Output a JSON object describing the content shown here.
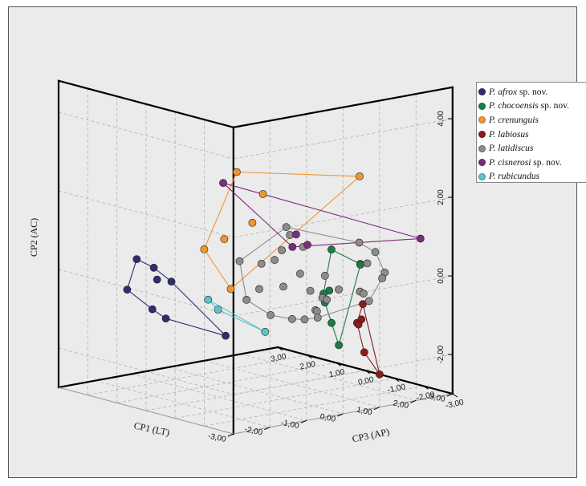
{
  "chart_data": {
    "type": "scatter",
    "projection": "3d",
    "hulls": true,
    "axes": {
      "x": {
        "label": "CP1 (LT)",
        "range": [
          -3,
          3
        ],
        "ticks": [
          "-3,00",
          "-2,00",
          "-1,00",
          "0,00",
          "1,00",
          "2,00",
          "3,00"
        ]
      },
      "z": {
        "label": "CP3 (AP)",
        "range": [
          -3,
          3
        ],
        "ticks": [
          "3,00",
          "2,00",
          "1,00",
          "0,00",
          "-1,00",
          "-2,00",
          "-3,00"
        ]
      },
      "y": {
        "label": "CP2 (AC)",
        "range": [
          -3,
          4.8
        ],
        "ticks": [
          "-2,00",
          "0,00",
          "2,00",
          "4,00"
        ]
      }
    },
    "series": [
      {
        "name": "P. afrox",
        "species": "P. afrox",
        "suffix": " sp. nov.",
        "color": "#2e2e6e",
        "points": [
          [
            -1.1,
            0.0,
            2.7
          ],
          [
            -1.35,
            0.0,
            1.8
          ],
          [
            -1.3,
            -0.3,
            1.75
          ],
          [
            -2.4,
            -0.3,
            1.4
          ],
          [
            -0.95,
            -0.4,
            1.7
          ],
          [
            -1.75,
            -0.9,
            1.35
          ],
          [
            -1.5,
            -1.15,
            1.2
          ],
          [
            -0.5,
            -1.6,
            0.4
          ]
        ]
      },
      {
        "name": "P. chocoensis",
        "species": "P. chocoensis",
        "suffix": " sp. nov.",
        "color": "#1e7a46",
        "points": [
          [
            1.2,
            0.6,
            -1.1
          ],
          [
            1.75,
            0.2,
            -1.4
          ],
          [
            1.95,
            0.1,
            -1.15
          ],
          [
            1.3,
            -0.5,
            -0.9
          ],
          [
            1.5,
            -0.7,
            -0.45
          ],
          [
            1.7,
            -1.0,
            -0.25
          ],
          [
            2.0,
            -1.6,
            -0.1
          ],
          [
            2.2,
            -2.2,
            -0.1
          ]
        ]
      },
      {
        "name": "P. crenunguis",
        "species": "P. crenunguis",
        "suffix": "",
        "color": "#f0962f",
        "points": [
          [
            2.05,
            2.3,
            -1.0
          ],
          [
            0.8,
            2.1,
            1.65
          ],
          [
            0.6,
            1.8,
            0.5
          ],
          [
            0.35,
            1.1,
            0.55
          ],
          [
            0.1,
            0.6,
            1.2
          ],
          [
            -0.25,
            0.35,
            1.45
          ],
          [
            -0.2,
            -0.5,
            0.6
          ]
        ]
      },
      {
        "name": "P. labiosus",
        "species": "P. labiosus",
        "suffix": "",
        "color": "#8b1c1c",
        "points": [
          [
            1.5,
            -0.7,
            -1.8
          ],
          [
            1.7,
            -1.3,
            -1.35
          ],
          [
            2.1,
            -1.35,
            -1.0
          ],
          [
            2.1,
            -1.5,
            -0.9
          ],
          [
            1.7,
            -2.0,
            -1.6
          ],
          [
            1.8,
            -2.5,
            -2.0
          ]
        ]
      },
      {
        "name": "P. latidiscus",
        "species": "P. latidiscus",
        "suffix": "",
        "color": "#8c8c8c",
        "points": [
          [
            0.4,
            1.2,
            -0.55
          ],
          [
            0.6,
            0.5,
            -0.15
          ],
          [
            0.7,
            0.9,
            -0.3
          ],
          [
            0.9,
            0.6,
            -0.5
          ],
          [
            0.4,
            0.1,
            0.3
          ],
          [
            0.6,
            0.2,
            0.1
          ],
          [
            0.2,
            0.1,
            0.8
          ],
          [
            1.6,
            0.8,
            -1.55
          ],
          [
            2.0,
            0.5,
            -1.6
          ],
          [
            1.9,
            0.2,
            -1.45
          ],
          [
            2.1,
            0.0,
            -1.8
          ],
          [
            1.95,
            -0.1,
            -1.9
          ],
          [
            1.5,
            -0.4,
            -1.7
          ],
          [
            1.55,
            -0.6,
            -1.95
          ],
          [
            1.8,
            -0.55,
            -1.45
          ],
          [
            1.4,
            -0.45,
            -1.1
          ],
          [
            1.3,
            -0.15,
            -0.75
          ],
          [
            1.1,
            -0.55,
            -0.5
          ],
          [
            1.35,
            -0.75,
            -0.6
          ],
          [
            1.55,
            -0.85,
            -0.5
          ],
          [
            1.2,
            -1.05,
            -0.55
          ],
          [
            1.4,
            -1.15,
            -0.35
          ],
          [
            1.3,
            -1.4,
            -0.05
          ],
          [
            1.5,
            -1.35,
            -0.25
          ],
          [
            0.9,
            -0.1,
            -0.4
          ],
          [
            0.8,
            -0.5,
            0.05
          ],
          [
            0.5,
            -0.6,
            0.5
          ],
          [
            0.35,
            -0.9,
            0.75
          ],
          [
            0.65,
            -1.25,
            0.3
          ],
          [
            1.0,
            -1.35,
            0.0
          ]
        ]
      },
      {
        "name": "P. cisnerosi",
        "species": "P. cisnerosi",
        "suffix": " sp. nov.",
        "color": "#7b2d7b",
        "points": [
          [
            2.6,
            0.9,
            -2.4
          ],
          [
            0.15,
            2.0,
            1.3
          ],
          [
            0.95,
            0.85,
            -0.2
          ],
          [
            0.85,
            0.55,
            -0.2
          ],
          [
            1.1,
            0.6,
            -0.4
          ]
        ]
      },
      {
        "name": "P. rubicundus",
        "species": "P. rubicundus",
        "suffix": "",
        "color": "#5cc4c4",
        "points": [
          [
            -0.5,
            -0.8,
            1.0
          ],
          [
            -0.35,
            -1.05,
            0.85
          ],
          [
            0.5,
            -1.65,
            0.3
          ]
        ]
      }
    ]
  }
}
